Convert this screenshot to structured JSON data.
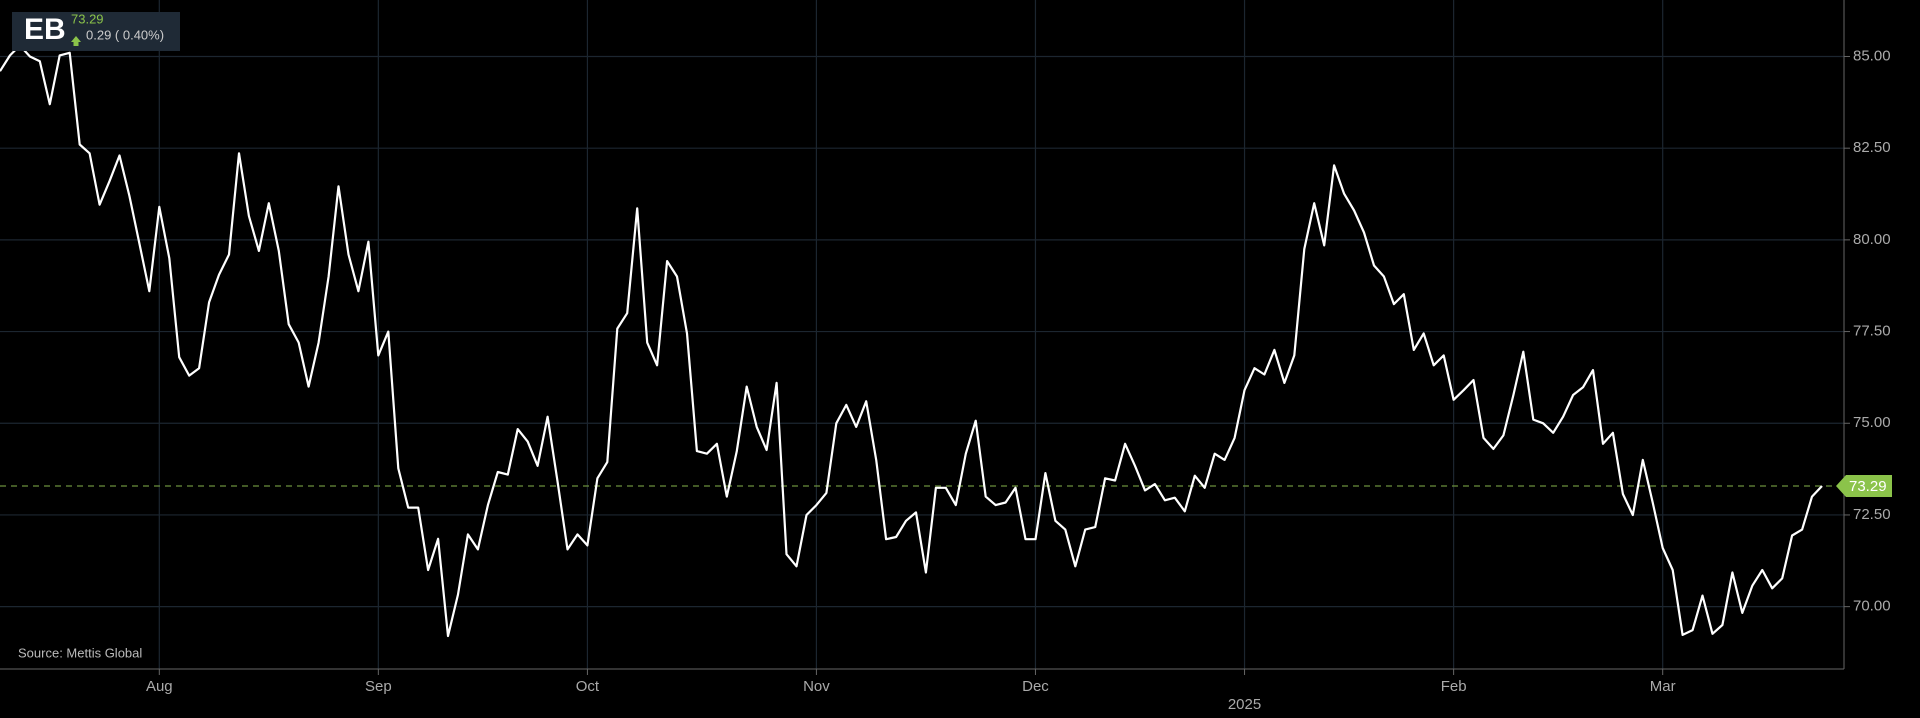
{
  "header": {
    "symbol": "EB",
    "price": "73.29",
    "change": "0.29 ( 0.40%)"
  },
  "chart_data": {
    "type": "line",
    "source": "Source: Mettis Global",
    "color": "#ffffff",
    "grid": true,
    "ylim": [
      68.3,
      86.54
    ],
    "yticks": [
      {
        "value": 70,
        "label": "70.00"
      },
      {
        "value": 72.5,
        "label": "72.50"
      },
      {
        "value": 75,
        "label": "75.00"
      },
      {
        "value": 77.5,
        "label": "77.50"
      },
      {
        "value": 80,
        "label": "80.00"
      },
      {
        "value": 82.5,
        "label": "82.50"
      },
      {
        "value": 85,
        "label": "85.00"
      }
    ],
    "last_price": 73.29,
    "categories": [
      null,
      null,
      null,
      null,
      null,
      null,
      null,
      null,
      null,
      null,
      null,
      null,
      null,
      null,
      null,
      null,
      "Aug",
      null,
      null,
      null,
      null,
      null,
      null,
      null,
      null,
      null,
      null,
      null,
      null,
      null,
      null,
      null,
      null,
      null,
      null,
      null,
      null,
      null,
      "Sep",
      null,
      null,
      null,
      null,
      null,
      null,
      null,
      null,
      null,
      null,
      null,
      null,
      null,
      null,
      null,
      null,
      null,
      null,
      null,
      null,
      "Oct",
      null,
      null,
      null,
      null,
      null,
      null,
      null,
      null,
      null,
      null,
      null,
      null,
      null,
      null,
      null,
      null,
      null,
      null,
      null,
      null,
      null,
      null,
      "Nov",
      null,
      null,
      null,
      null,
      null,
      null,
      null,
      null,
      null,
      null,
      null,
      null,
      null,
      null,
      null,
      null,
      null,
      null,
      null,
      null,
      null,
      "Dec",
      null,
      null,
      null,
      null,
      null,
      null,
      null,
      null,
      null,
      null,
      null,
      null,
      null,
      null,
      null,
      null,
      null,
      null,
      null,
      null,
      "2025",
      null,
      null,
      null,
      null,
      null,
      null,
      null,
      null,
      null,
      null,
      null,
      null,
      null,
      null,
      null,
      null,
      null,
      null,
      null,
      null,
      "Feb",
      null,
      null,
      null,
      null,
      null,
      null,
      null,
      null,
      null,
      null,
      null,
      null,
      null,
      null,
      null,
      null,
      null,
      null,
      null,
      null,
      "Mar",
      null,
      null,
      null,
      null,
      null,
      null,
      null,
      null,
      null,
      null,
      null,
      null,
      null,
      null,
      null,
      null
    ],
    "values": [
      84.6,
      85.03,
      85.3,
      85.0,
      84.87,
      83.7,
      85.03,
      85.1,
      82.6,
      82.36,
      80.96,
      81.6,
      82.3,
      81.2,
      79.9,
      78.6,
      80.9,
      79.5,
      76.8,
      76.3,
      76.5,
      78.3,
      79.05,
      79.6,
      82.36,
      80.65,
      79.7,
      81.0,
      79.7,
      77.7,
      77.2,
      76.0,
      77.2,
      79.0,
      81.46,
      79.6,
      78.6,
      79.95,
      76.85,
      77.5,
      73.77,
      72.7,
      72.7,
      71.0,
      71.85,
      69.2,
      70.33,
      71.97,
      71.56,
      72.77,
      73.67,
      73.6,
      74.84,
      74.5,
      73.84,
      75.18,
      73.4,
      71.56,
      71.97,
      71.67,
      73.5,
      73.94,
      77.58,
      78.0,
      80.86,
      77.2,
      76.58,
      79.42,
      79.0,
      77.45,
      74.24,
      74.17,
      74.44,
      73.0,
      74.24,
      76.0,
      74.9,
      74.27,
      76.1,
      71.43,
      71.1,
      72.5,
      72.77,
      73.1,
      75.0,
      75.5,
      74.9,
      75.6,
      74.0,
      71.84,
      71.9,
      72.34,
      72.57,
      70.93,
      73.24,
      73.24,
      72.77,
      74.17,
      75.07,
      73.0,
      72.77,
      72.84,
      73.24,
      71.84,
      71.84,
      73.64,
      72.34,
      72.1,
      71.1,
      72.1,
      72.17,
      73.5,
      73.44,
      74.44,
      73.84,
      73.17,
      73.34,
      72.9,
      72.97,
      72.6,
      73.57,
      73.24,
      74.17,
      74.0,
      74.6,
      75.9,
      76.5,
      76.33,
      77.0,
      76.1,
      76.85,
      79.75,
      81.0,
      79.85,
      82.03,
      81.26,
      80.8,
      80.2,
      79.3,
      79.0,
      78.25,
      78.52,
      77.0,
      77.45,
      76.58,
      76.85,
      75.64,
      75.9,
      76.18,
      74.6,
      74.3,
      74.67,
      75.77,
      76.95,
      75.1,
      75.0,
      74.74,
      75.18,
      75.77,
      75.98,
      76.45,
      74.44,
      74.74,
      73.07,
      72.5,
      74.0,
      72.84,
      71.6,
      71.0,
      69.23,
      69.36,
      70.3,
      69.26,
      69.5,
      70.93,
      69.83,
      70.57,
      71.0,
      70.5,
      70.77,
      71.94,
      72.1,
      73.0,
      73.29
    ]
  }
}
